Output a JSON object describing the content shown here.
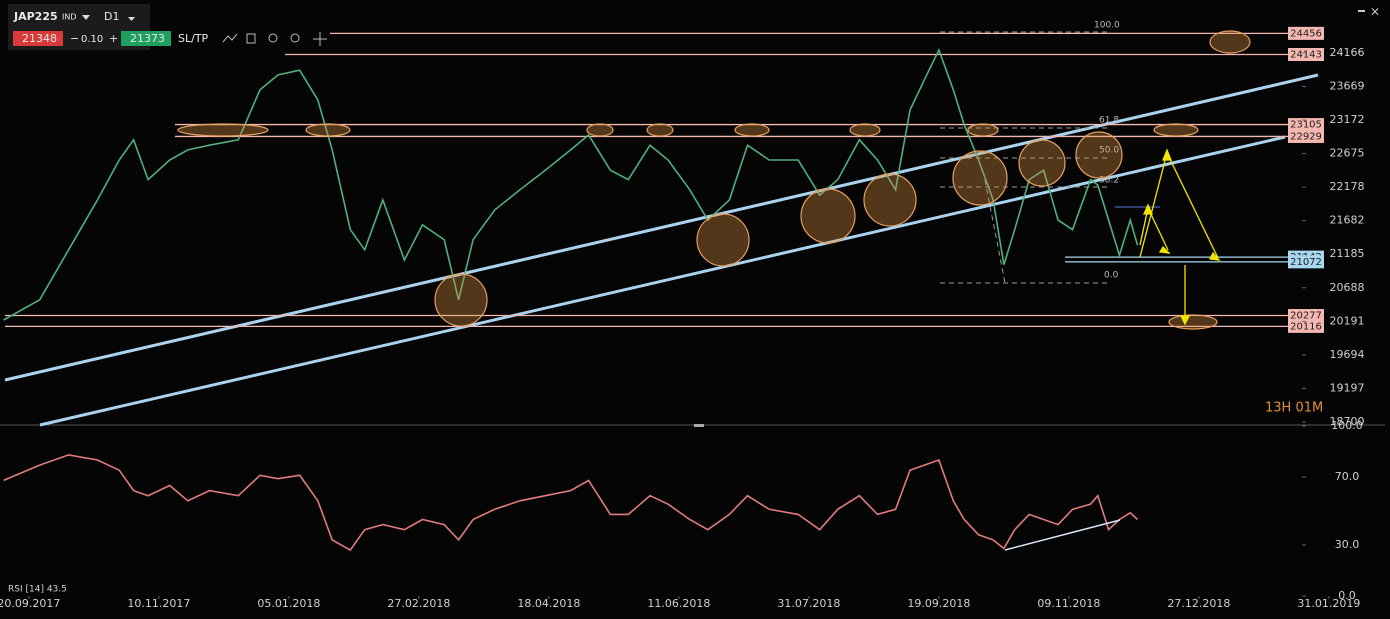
{
  "toolbar": {
    "symbol": "JAP225",
    "kind": "IND",
    "timeframe": "D1",
    "bid": "21348",
    "spread": "0.10",
    "ask": "21373",
    "order": "SL/TP"
  },
  "timer": "13H 01M",
  "fib_labels": [
    "100.0",
    "61.8",
    "50.0",
    "38.2",
    "0.0"
  ],
  "chart_data": [
    {
      "type": "line",
      "x": [
        -7,
        3,
        11,
        19,
        25,
        29,
        33,
        39,
        44,
        50,
        58,
        64,
        69,
        75,
        80,
        84,
        89,
        93,
        98,
        104,
        109,
        115,
        119,
        123,
        129,
        136,
        143,
        150,
        155,
        161,
        166,
        172,
        177,
        183,
        188,
        194,
        199,
        205,
        213,
        219,
        224,
        230,
        235,
        240,
        244,
        248,
        252,
        256,
        259,
        263,
        267,
        270,
        273,
        277,
        281,
        285,
        289,
        294,
        296,
        299,
        302,
        305,
        307
      ],
      "series": [
        {
          "name": "JAP225",
          "color": "#4fb07a",
          "values": [
            20210,
            20510,
            21250,
            21990,
            22580,
            22880,
            22290,
            22580,
            22730,
            22800,
            22880,
            23620,
            23840,
            23910,
            23470,
            22730,
            21550,
            21250,
            21990,
            21100,
            21620,
            21400,
            20510,
            21400,
            21840,
            22140,
            22430,
            22730,
            22950,
            22430,
            22290,
            22800,
            22580,
            22140,
            21690,
            21990,
            22800,
            22580,
            22580,
            22060,
            22290,
            22880,
            22580,
            22140,
            23320,
            23770,
            24210,
            23620,
            23100,
            22580,
            21990,
            21030,
            21550,
            22290,
            22430,
            21690,
            21550,
            22290,
            22210,
            21690,
            21170,
            21690,
            21320
          ]
        }
      ],
      "xlim": [
        -8,
        370
      ],
      "ylim": [
        18700,
        24950
      ],
      "yticks": [
        24166,
        23669,
        23172,
        22675,
        22178,
        21682,
        21185,
        20688,
        20191,
        19694,
        19197,
        18700
      ],
      "levels": [
        {
          "value": 24456,
          "color": "#f4b8b0"
        },
        {
          "value": 24143,
          "color": "#f4b8b0"
        },
        {
          "value": 23105,
          "color": "#f4b8b0"
        },
        {
          "value": 22929,
          "color": "#f4b8b0"
        },
        {
          "value": 21142,
          "color": "#a8d8f0"
        },
        {
          "value": 21072,
          "color": "#a8d8f0"
        },
        {
          "value": 20277,
          "color": "#f4b8b0"
        },
        {
          "value": 20116,
          "color": "#f4b8b0"
        }
      ]
    },
    {
      "type": "line",
      "x": [
        -7,
        3,
        11,
        19,
        25,
        29,
        33,
        39,
        44,
        50,
        58,
        64,
        69,
        75,
        80,
        84,
        89,
        93,
        98,
        104,
        109,
        115,
        119,
        123,
        129,
        136,
        143,
        150,
        155,
        161,
        166,
        172,
        177,
        183,
        188,
        194,
        199,
        205,
        213,
        219,
        224,
        230,
        235,
        240,
        244,
        248,
        252,
        256,
        259,
        263,
        267,
        270,
        273,
        277,
        281,
        285,
        289,
        294,
        296,
        299,
        302,
        305,
        307
      ],
      "series": [
        {
          "name": "RSI [14] 43.5",
          "color": "#e07c7c",
          "values": [
            68,
            77,
            83,
            80,
            74,
            62,
            59,
            65,
            56,
            62,
            59,
            71,
            69,
            71,
            56,
            33,
            27,
            39,
            42,
            39,
            45,
            42,
            33,
            45,
            51,
            56,
            59,
            62,
            68,
            48,
            48,
            59,
            54,
            45,
            39,
            48,
            59,
            51,
            48,
            39,
            51,
            59,
            48,
            51,
            74,
            77,
            80,
            56,
            45,
            36,
            33,
            28,
            39,
            48,
            45,
            42,
            51,
            54,
            59,
            39,
            45,
            49,
            45
          ]
        }
      ],
      "xlim": [
        -8,
        370
      ],
      "ylim": [
        0,
        100
      ],
      "yticks": [
        {
          "value": 100,
          "label": "100.0"
        },
        {
          "value": 70,
          "label": "70.0"
        },
        {
          "value": 30,
          "label": "30.0"
        },
        {
          "value": 0,
          "label": "0.0"
        }
      ],
      "xticks": [
        {
          "value": 0,
          "label": "20.09.2017"
        },
        {
          "value": 36,
          "label": "10.11.2017"
        },
        {
          "value": 72,
          "label": "05.01.2018"
        },
        {
          "value": 108,
          "label": "27.02.2018"
        },
        {
          "value": 144,
          "label": "18.04.2018"
        },
        {
          "value": 180,
          "label": "11.06.2018"
        },
        {
          "value": 216,
          "label": "31.07.2018"
        },
        {
          "value": 252,
          "label": "19.09.2018"
        },
        {
          "value": 288,
          "label": "09.11.2018"
        },
        {
          "value": 324,
          "label": "27.12.2018"
        },
        {
          "value": 360,
          "label": "31.01.2019"
        }
      ]
    }
  ]
}
